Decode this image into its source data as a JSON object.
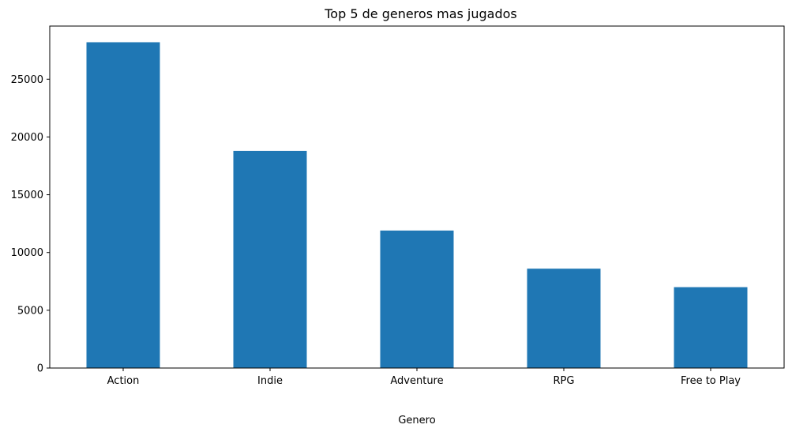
{
  "chart_data": {
    "type": "bar",
    "title": "Top 5 de generos mas jugados",
    "xlabel": "Genero",
    "ylabel": "",
    "categories": [
      "Action",
      "Indie",
      "Adventure",
      "RPG",
      "Free to Play"
    ],
    "values": [
      28200,
      18800,
      11900,
      8600,
      7000
    ],
    "ylim": [
      0,
      29600
    ],
    "yticks": [
      0,
      5000,
      10000,
      15000,
      20000,
      25000
    ],
    "grid": false,
    "legend": "none",
    "bar_color": "#1f77b4"
  }
}
